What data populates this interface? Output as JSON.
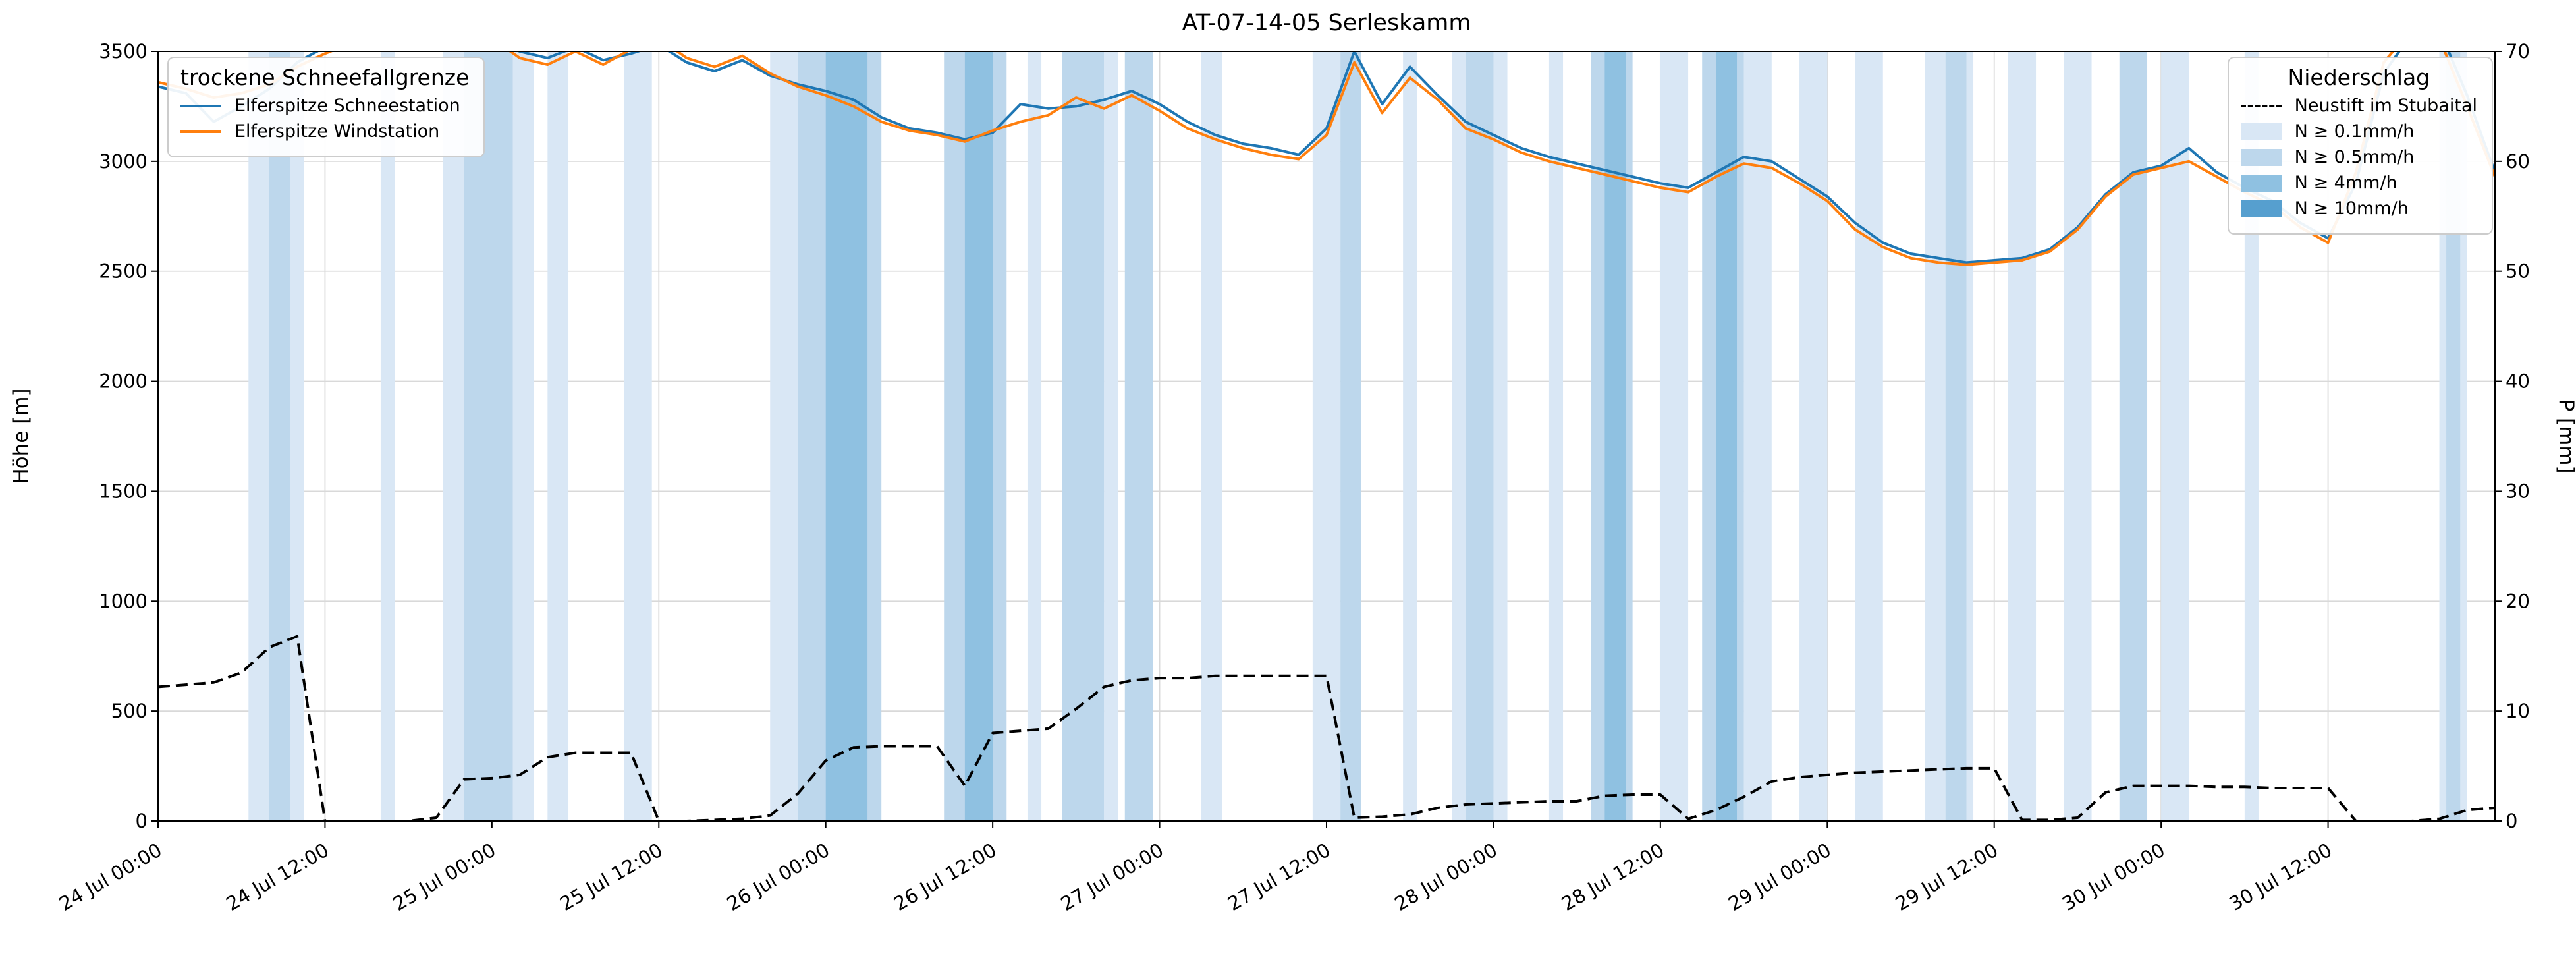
{
  "chart_data": {
    "type": "line",
    "title": "AT-07-14-05 Serleskamm",
    "legend_left_title": "trockene Schneefallgrenze",
    "legend_right_title": "Niederschlag",
    "x_axis": {
      "unit": "hours since 24 Jul 00:00",
      "max_hour": 168,
      "step_hours": 2,
      "tick_hours": [
        0,
        12,
        24,
        36,
        48,
        60,
        72,
        84,
        96,
        108,
        120,
        132,
        144,
        156
      ],
      "tick_labels": [
        "24 Jul 00:00",
        "24 Jul 12:00",
        "25 Jul 00:00",
        "25 Jul 12:00",
        "26 Jul 00:00",
        "26 Jul 12:00",
        "27 Jul 00:00",
        "27 Jul 12:00",
        "28 Jul 00:00",
        "28 Jul 12:00",
        "29 Jul 00:00",
        "29 Jul 12:00",
        "30 Jul 00:00",
        "30 Jul 12:00"
      ]
    },
    "y_left": {
      "label": "Höhe [m]",
      "min": 0,
      "max": 3500,
      "ticks": [
        0,
        500,
        1000,
        1500,
        2000,
        2500,
        3000,
        3500
      ]
    },
    "y_right": {
      "label": "P [mm]",
      "min": 0,
      "max": 70,
      "ticks": [
        0,
        10,
        20,
        30,
        40,
        50,
        60,
        70
      ]
    },
    "grid": true,
    "series": [
      {
        "name": "Elferspitze Schneestation",
        "color": "#1f77b4",
        "style": "solid",
        "axis": "left",
        "values": [
          3340,
          3310,
          3180,
          3250,
          3330,
          3450,
          3520,
          3560,
          3600,
          3620,
          3600,
          3570,
          3540,
          3500,
          3470,
          3520,
          3460,
          3490,
          3530,
          3450,
          3410,
          3460,
          3390,
          3350,
          3320,
          3280,
          3200,
          3150,
          3130,
          3100,
          3130,
          3260,
          3240,
          3250,
          3280,
          3320,
          3260,
          3180,
          3120,
          3080,
          3060,
          3030,
          3150,
          3500,
          3260,
          3430,
          3300,
          3180,
          3120,
          3060,
          3020,
          2990,
          2960,
          2930,
          2900,
          2880,
          2950,
          3020,
          3000,
          2920,
          2840,
          2720,
          2630,
          2580,
          2560,
          2540,
          2550,
          2560,
          2600,
          2700,
          2850,
          2950,
          2980,
          3060,
          2950,
          2880,
          2820,
          2720,
          2650,
          2900,
          3400,
          3580,
          3600,
          3300,
          2950
        ]
      },
      {
        "name": "Elferspitze Windstation",
        "color": "#ff7f0e",
        "style": "solid",
        "axis": "left",
        "values": [
          3360,
          3330,
          3290,
          3310,
          3350,
          3430,
          3490,
          3540,
          3580,
          3640,
          3620,
          3590,
          3560,
          3470,
          3440,
          3500,
          3440,
          3510,
          3560,
          3470,
          3430,
          3480,
          3400,
          3340,
          3300,
          3250,
          3180,
          3140,
          3120,
          3090,
          3140,
          3180,
          3210,
          3290,
          3240,
          3300,
          3230,
          3150,
          3100,
          3060,
          3030,
          3010,
          3120,
          3450,
          3220,
          3380,
          3280,
          3150,
          3100,
          3040,
          3000,
          2970,
          2940,
          2910,
          2880,
          2860,
          2930,
          2990,
          2970,
          2900,
          2820,
          2690,
          2610,
          2560,
          2540,
          2530,
          2540,
          2550,
          2590,
          2690,
          2840,
          2940,
          2970,
          3000,
          2930,
          2860,
          2800,
          2700,
          2630,
          2950,
          3450,
          3600,
          3560,
          3250,
          2930
        ]
      },
      {
        "name": "Neustift im Stubaital",
        "color": "#000000",
        "style": "dashed",
        "axis": "right",
        "values": [
          12.2,
          12.4,
          12.6,
          13.5,
          15.8,
          16.8,
          0,
          0,
          0,
          0,
          0.3,
          3.8,
          3.9,
          4.2,
          5.8,
          6.2,
          6.2,
          6.2,
          0,
          0,
          0.1,
          0.2,
          0.5,
          2.5,
          5.5,
          6.7,
          6.8,
          6.8,
          6.8,
          3.2,
          8.0,
          8.2,
          8.4,
          10.2,
          12.2,
          12.8,
          13.0,
          13.0,
          13.2,
          13.2,
          13.2,
          13.2,
          13.2,
          0.3,
          0.4,
          0.6,
          1.2,
          1.5,
          1.6,
          1.7,
          1.8,
          1.8,
          2.3,
          2.4,
          2.4,
          0.2,
          1.0,
          2.2,
          3.6,
          4.0,
          4.2,
          4.4,
          4.5,
          4.6,
          4.7,
          4.8,
          4.8,
          0.1,
          0.1,
          0.3,
          2.6,
          3.2,
          3.2,
          3.2,
          3.1,
          3.1,
          3.0,
          3.0,
          3.0,
          0.0,
          0.0,
          0.0,
          0.2,
          1.0,
          1.2
        ]
      }
    ],
    "precip_bands": {
      "levels": [
        {
          "label": "N ≥ 0.1mm/h",
          "color": "#d9e7f5"
        },
        {
          "label": "N ≥ 0.5mm/h",
          "color": "#bdd7ec"
        },
        {
          "label": "N ≥ 4mm/h",
          "color": "#8fc1e1"
        },
        {
          "label": "N ≥ 10mm/h",
          "color": "#569fcf"
        }
      ],
      "spans": [
        {
          "s": 6.5,
          "e": 8,
          "l": 1
        },
        {
          "s": 8,
          "e": 9.5,
          "l": 2
        },
        {
          "s": 9.5,
          "e": 10.5,
          "l": 1
        },
        {
          "s": 16,
          "e": 17,
          "l": 1
        },
        {
          "s": 20.5,
          "e": 22,
          "l": 1
        },
        {
          "s": 22,
          "e": 25.5,
          "l": 2
        },
        {
          "s": 25.5,
          "e": 27,
          "l": 1
        },
        {
          "s": 28,
          "e": 29.5,
          "l": 1
        },
        {
          "s": 33.5,
          "e": 35.5,
          "l": 1
        },
        {
          "s": 44,
          "e": 46,
          "l": 1
        },
        {
          "s": 46,
          "e": 52,
          "l": 2
        },
        {
          "s": 48,
          "e": 51,
          "l": 3
        },
        {
          "s": 56.5,
          "e": 61,
          "l": 2
        },
        {
          "s": 58,
          "e": 60,
          "l": 3
        },
        {
          "s": 62.5,
          "e": 63.5,
          "l": 1
        },
        {
          "s": 65,
          "e": 68,
          "l": 2
        },
        {
          "s": 68,
          "e": 69,
          "l": 1
        },
        {
          "s": 69.5,
          "e": 71.5,
          "l": 2
        },
        {
          "s": 75,
          "e": 76.5,
          "l": 1
        },
        {
          "s": 83,
          "e": 85,
          "l": 1
        },
        {
          "s": 85,
          "e": 86.5,
          "l": 2
        },
        {
          "s": 89.5,
          "e": 90.5,
          "l": 1
        },
        {
          "s": 93,
          "e": 97,
          "l": 1
        },
        {
          "s": 94,
          "e": 96,
          "l": 2
        },
        {
          "s": 100,
          "e": 101,
          "l": 1
        },
        {
          "s": 103,
          "e": 106,
          "l": 2
        },
        {
          "s": 104,
          "e": 105.5,
          "l": 3
        },
        {
          "s": 108,
          "e": 110,
          "l": 1
        },
        {
          "s": 111,
          "e": 114,
          "l": 2
        },
        {
          "s": 112,
          "e": 113.5,
          "l": 3
        },
        {
          "s": 114,
          "e": 116,
          "l": 1
        },
        {
          "s": 118,
          "e": 120,
          "l": 1
        },
        {
          "s": 122,
          "e": 124,
          "l": 1
        },
        {
          "s": 127,
          "e": 130.5,
          "l": 1
        },
        {
          "s": 128.5,
          "e": 130,
          "l": 2
        },
        {
          "s": 133,
          "e": 135,
          "l": 1
        },
        {
          "s": 137,
          "e": 139,
          "l": 1
        },
        {
          "s": 141,
          "e": 143,
          "l": 2
        },
        {
          "s": 144,
          "e": 146,
          "l": 1
        },
        {
          "s": 150,
          "e": 151,
          "l": 1
        },
        {
          "s": 164,
          "e": 166,
          "l": 1
        },
        {
          "s": 164.5,
          "e": 165.5,
          "l": 2
        }
      ]
    },
    "style_colors": {
      "grid": "#d9d9d9",
      "spine": "#000000",
      "legend_border": "#cccccc"
    }
  }
}
